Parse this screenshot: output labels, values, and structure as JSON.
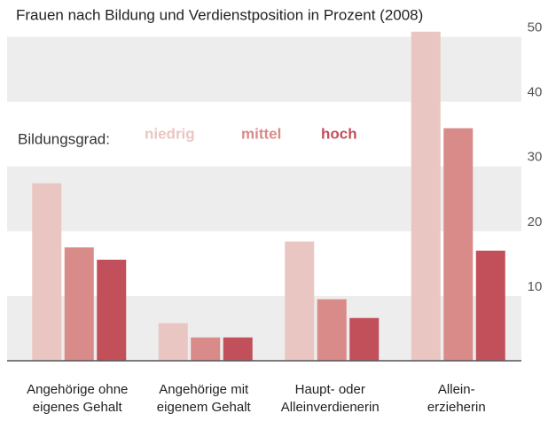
{
  "chart_data": {
    "type": "bar",
    "subtitle": "Frauen nach Bildung und Verdienstposition in Prozent (2008)",
    "legend_title": "Bildungsgrad:",
    "categories": [
      [
        "Angehörige ohne",
        "eigenes Gehalt"
      ],
      [
        "Angehörige mit",
        "eigenem Gehalt"
      ],
      [
        "Haupt- oder",
        "Alleinverdienerin"
      ],
      [
        "Allein-",
        "erzieherin"
      ]
    ],
    "series": [
      {
        "name": "niedrig",
        "color": "#eac6c2",
        "values": [
          27.4,
          5.8,
          18.4,
          50.8
        ]
      },
      {
        "name": "mittel",
        "color": "#d98b89",
        "values": [
          17.5,
          3.6,
          9.5,
          35.9
        ]
      },
      {
        "name": "hoch",
        "color": "#c2505b",
        "values": [
          15.6,
          3.6,
          6.6,
          17
        ]
      }
    ],
    "ylim": [
      0,
      52
    ],
    "yticks": [
      10,
      20,
      30,
      40,
      50
    ],
    "grid": true
  }
}
